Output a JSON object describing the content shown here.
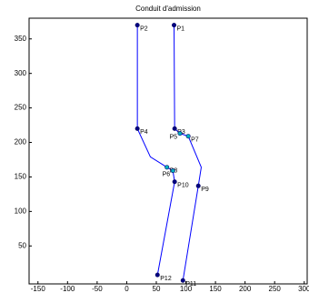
{
  "chart_data": {
    "type": "line",
    "title": "Conduit d'admission",
    "xlim": [
      -165,
      305
    ],
    "ylim": [
      -5,
      380
    ],
    "xticks": [
      -150,
      -100,
      -50,
      0,
      50,
      100,
      150,
      200,
      250,
      300
    ],
    "yticks": [
      50,
      100,
      150,
      200,
      250,
      300,
      350
    ],
    "series": [
      {
        "color": "#0000ff",
        "x": [
          18,
          18,
          40,
          68,
          78,
          81,
          52
        ],
        "values": [
          370,
          220,
          179,
          164,
          159,
          143,
          8
        ],
        "point_labels": [
          "P2",
          "P4",
          null,
          "P8",
          "P6",
          "P10",
          "P12"
        ],
        "marker_colors": [
          "#000080",
          "#000080",
          null,
          "#00b0c0",
          "#00b0c0",
          "#000080",
          "#000080"
        ]
      },
      {
        "color": "#0000ff",
        "x": [
          80,
          81,
          90,
          104,
          126,
          121,
          95
        ],
        "values": [
          370,
          220,
          213,
          209,
          164,
          137,
          0
        ],
        "point_labels": [
          "P1",
          "P3",
          "P5",
          "P7",
          null,
          "P9",
          "P11"
        ],
        "marker_colors": [
          "#000080",
          "#000080",
          "#00b0c0",
          "#00b0c0",
          null,
          "#000080",
          "#000080"
        ]
      }
    ]
  }
}
